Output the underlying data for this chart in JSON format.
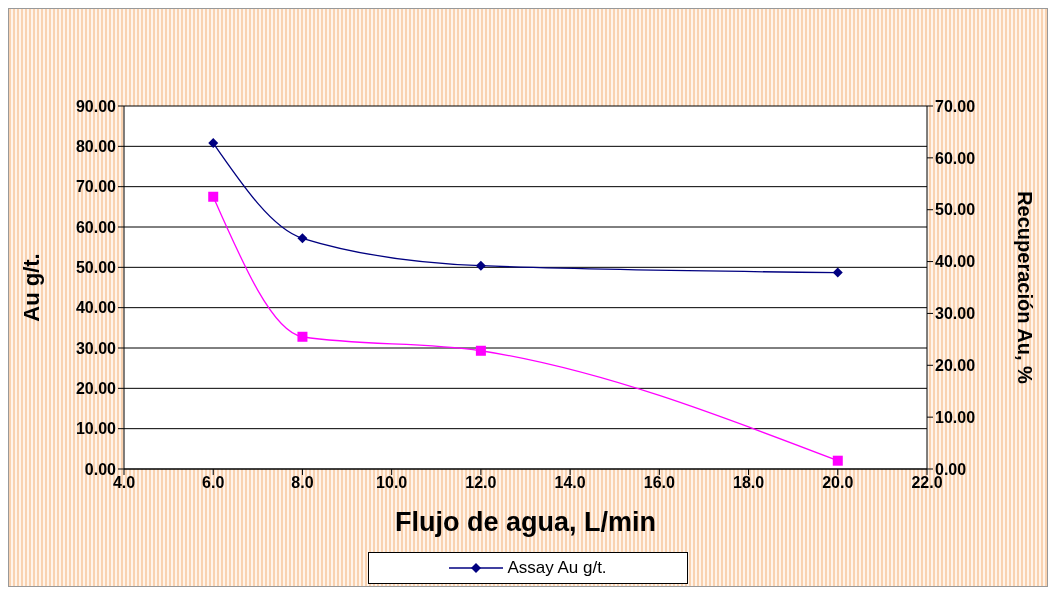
{
  "chart_data": {
    "type": "line",
    "xlabel": "Flujo de agua, L/min",
    "ylabel": "Au  g/t.",
    "y2label": "Recuperación  Au, %",
    "x": [
      6,
      8,
      12,
      20
    ],
    "series": [
      {
        "name": "Assay Au g/t.",
        "color": "#000080",
        "values": [
          80.8,
          57.2,
          50.4,
          48.7
        ],
        "marker": "diamond"
      },
      {
        "color": "#ff00ff",
        "values": [
          52.5,
          25.5,
          22.8,
          1.6
        ],
        "axis": "y2",
        "marker": "square"
      }
    ],
    "xlim": [
      4,
      22
    ],
    "xticks": [
      {
        "value": 4,
        "label": "4.0"
      },
      {
        "value": 6,
        "label": "6.0"
      },
      {
        "value": 8,
        "label": "8.0"
      },
      {
        "value": 10,
        "label": "10.0"
      },
      {
        "value": 12,
        "label": "12.0"
      },
      {
        "value": 14,
        "label": "14.0"
      },
      {
        "value": 16,
        "label": "16.0"
      },
      {
        "value": 18,
        "label": "18.0"
      },
      {
        "value": 20,
        "label": "20.0"
      },
      {
        "value": 22,
        "label": "22.0"
      }
    ],
    "ylim": [
      0,
      90
    ],
    "yticks": [
      {
        "value": 0,
        "label": "0.00"
      },
      {
        "value": 10,
        "label": "10.00"
      },
      {
        "value": 20,
        "label": "20.00"
      },
      {
        "value": 30,
        "label": "30.00"
      },
      {
        "value": 40,
        "label": "40.00"
      },
      {
        "value": 50,
        "label": "50.00"
      },
      {
        "value": 60,
        "label": "60.00"
      },
      {
        "value": 70,
        "label": "70.00"
      },
      {
        "value": 80,
        "label": "80.00"
      },
      {
        "value": 90,
        "label": "90.00"
      }
    ],
    "y2lim": [
      0,
      70
    ],
    "y2ticks": [
      {
        "value": 0,
        "label": "0.00"
      },
      {
        "value": 10,
        "label": "10.00"
      },
      {
        "value": 20,
        "label": "20.00"
      },
      {
        "value": 30,
        "label": "30.00"
      },
      {
        "value": 40,
        "label": "40.00"
      },
      {
        "value": 50,
        "label": "50.00"
      },
      {
        "value": 60,
        "label": "60.00"
      },
      {
        "value": 70,
        "label": "70.00"
      }
    ],
    "grid": "y",
    "legend": "bottom",
    "line_style": "solid"
  }
}
